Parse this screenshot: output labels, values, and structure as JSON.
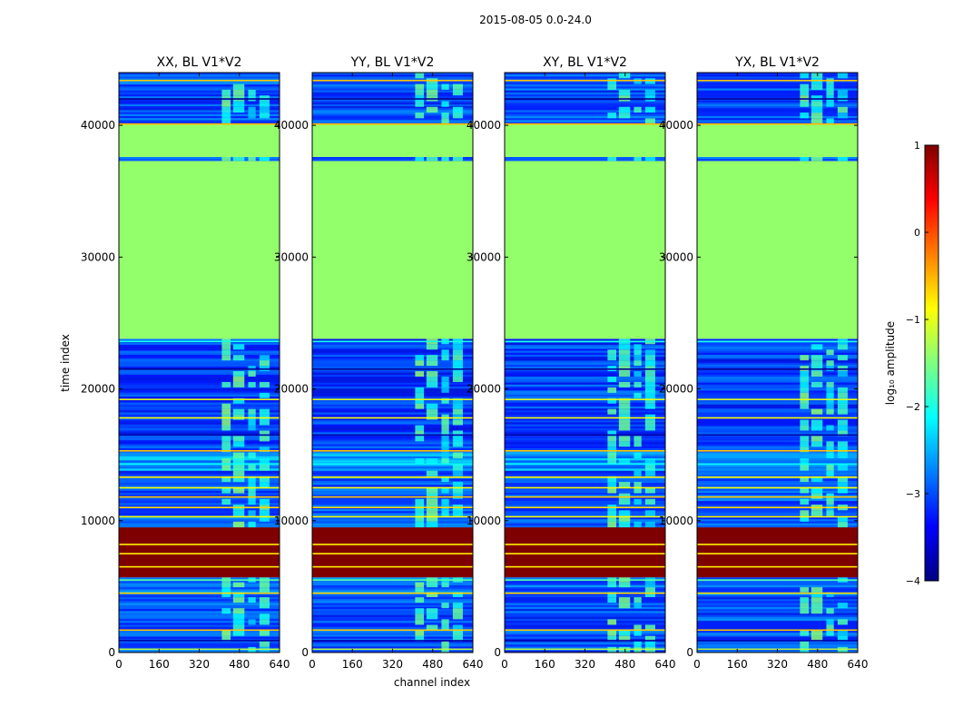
{
  "figure": {
    "suptitle": "2015-08-05 0.0-24.0",
    "xlabel": "channel index",
    "ylabel": "time index"
  },
  "colormap": {
    "name": "jet",
    "stops": [
      "#00007f",
      "#0000ff",
      "#007fff",
      "#00ffff",
      "#7fff7f",
      "#ffff00",
      "#ff7f00",
      "#ff0000",
      "#7f0000"
    ]
  },
  "colorbar": {
    "label": "log₁₀ amplitude",
    "range": [
      -4,
      1
    ],
    "ticks": [
      1,
      0,
      -1,
      -2,
      -3,
      -4
    ],
    "tick_labels": [
      "1",
      "0",
      "−1",
      "−2",
      "−3",
      "−4"
    ]
  },
  "chart_data": {
    "type": "heatmap",
    "value_meaning": "log10 amplitude",
    "xlim": [
      0,
      640
    ],
    "ylim": [
      0,
      44000
    ],
    "xticks": [
      0,
      160,
      320,
      480,
      640
    ],
    "xtick_labels": [
      "0",
      "160",
      "320",
      "480",
      "640"
    ],
    "yticks": [
      0,
      10000,
      20000,
      30000,
      40000
    ],
    "ytick_labels": [
      "0",
      "10000",
      "20000",
      "30000",
      "40000"
    ],
    "panels": [
      {
        "title": "XX, BL V1*V2",
        "pol": "XX"
      },
      {
        "title": "YY, BL V1*V2",
        "pol": "YY"
      },
      {
        "title": "XY, BL V1*V2",
        "pol": "XY"
      },
      {
        "title": "YX, BL V1*V2",
        "pol": "YX"
      }
    ],
    "time_blocks": [
      {
        "t0": 0,
        "t1": 4200,
        "level": -3.0,
        "note": "noise"
      },
      {
        "t0": 4200,
        "t1": 5700,
        "level": -2.9,
        "note": "noise with stripes"
      },
      {
        "t0": 5700,
        "t1": 9500,
        "level": 1.0,
        "note": "saturated"
      },
      {
        "t0": 9500,
        "t1": 13800,
        "level": -3.0,
        "note": "striped noise"
      },
      {
        "t0": 13800,
        "t1": 15200,
        "level": -2.6,
        "note": "noise"
      },
      {
        "t0": 15200,
        "t1": 23800,
        "level": -3.1,
        "note": "noise"
      },
      {
        "t0": 23800,
        "t1": 37300,
        "level": -1.4,
        "note": "uniform"
      },
      {
        "t0": 37300,
        "t1": 37600,
        "level": -2.8,
        "note": "gap"
      },
      {
        "t0": 37600,
        "t1": 40100,
        "level": -1.4,
        "note": "uniform"
      },
      {
        "t0": 40100,
        "t1": 44000,
        "level": -3.0,
        "note": "noise"
      }
    ],
    "bright_channel_bands": [
      {
        "c0": 410,
        "c1": 445,
        "level": -1.8
      },
      {
        "c0": 455,
        "c1": 500,
        "level": -1.8
      },
      {
        "c0": 515,
        "c1": 545,
        "level": -2.0
      },
      {
        "c0": 560,
        "c1": 600,
        "level": -2.0
      }
    ],
    "horizontal_lines": [
      {
        "t": 250,
        "level": -1.2
      },
      {
        "t": 900,
        "level": -3.8
      },
      {
        "t": 1700,
        "level": -0.6
      },
      {
        "t": 4500,
        "level": -0.7
      },
      {
        "t": 5500,
        "level": -1.7
      },
      {
        "t": 6500,
        "level": -0.8
      },
      {
        "t": 7500,
        "level": -0.8
      },
      {
        "t": 8200,
        "level": -0.8
      },
      {
        "t": 10300,
        "level": -0.9
      },
      {
        "t": 11000,
        "level": -0.7
      },
      {
        "t": 11800,
        "level": -0.6
      },
      {
        "t": 12500,
        "level": -0.9
      },
      {
        "t": 13300,
        "level": -0.8
      },
      {
        "t": 14300,
        "level": -2.1
      },
      {
        "t": 15300,
        "level": -0.6
      },
      {
        "t": 16500,
        "level": -3.8
      },
      {
        "t": 17800,
        "level": -0.9
      },
      {
        "t": 19200,
        "level": -1.0
      },
      {
        "t": 21500,
        "level": -3.9
      },
      {
        "t": 23600,
        "level": -2.0
      },
      {
        "t": 40100,
        "level": -0.5
      },
      {
        "t": 42000,
        "level": -3.9
      },
      {
        "t": 43400,
        "level": -0.6
      }
    ]
  }
}
